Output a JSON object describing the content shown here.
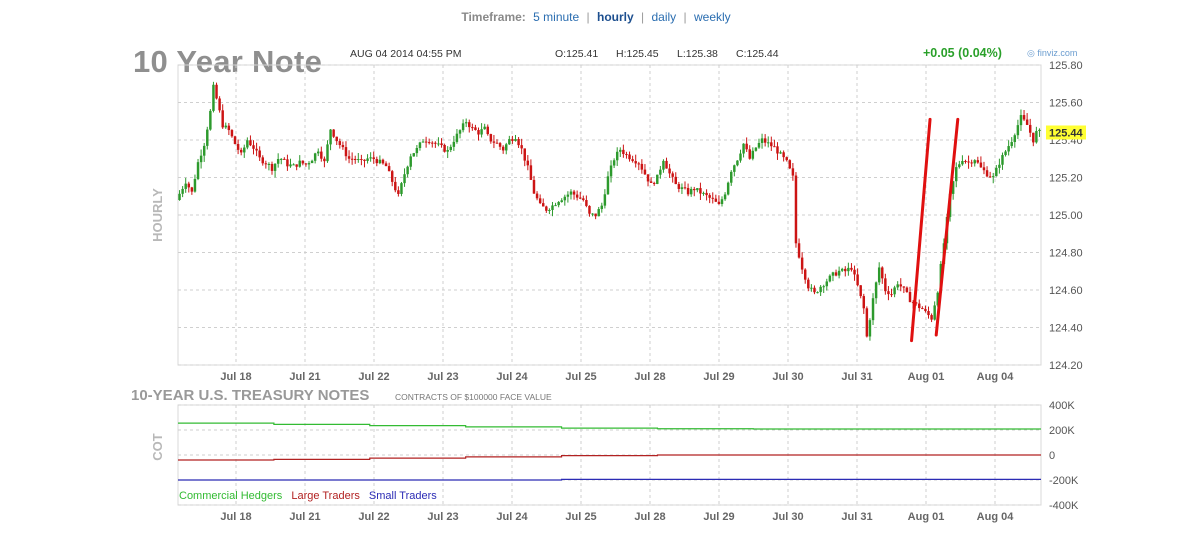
{
  "timeframe": {
    "label": "Timeframe:",
    "options": [
      {
        "label": "5 minute",
        "active": false
      },
      {
        "label": "hourly",
        "active": true
      },
      {
        "label": "daily",
        "active": false
      },
      {
        "label": "weekly",
        "active": false
      }
    ],
    "separator": "|"
  },
  "header": {
    "title": "10 Year Note",
    "datetime": "AUG 04 2014 04:55 PM",
    "open": "O:125.41",
    "high": "H:125.45",
    "low": "L:125.38",
    "close": "C:125.44",
    "change": "+0.05 (0.04%)",
    "source": "finviz.com"
  },
  "colors": {
    "up_candle": "#2d9a2d",
    "down_candle": "#cc1414",
    "grid": "#cfcfcf",
    "annotation": "#e01010",
    "last_price_bg": "#ffff33",
    "commercial": "#33bb33",
    "large": "#b22222",
    "small": "#2b2bb5"
  },
  "chart_data": [
    {
      "type": "candlestick",
      "ylabel": "HOURLY",
      "ylim": [
        124.2,
        125.8
      ],
      "yticks": [
        "125.80",
        "125.60",
        "125.40",
        "125.20",
        "125.00",
        "124.80",
        "124.60",
        "124.40",
        "124.20"
      ],
      "last_price": "125.44",
      "x_labels": [
        "Jul 18",
        "Jul 21",
        "Jul 22",
        "Jul 23",
        "Jul 24",
        "Jul 25",
        "Jul 28",
        "Jul 29",
        "Jul 30",
        "Jul 31",
        "Aug 01",
        "Aug 04"
      ],
      "price_path": [
        [
          0,
          125.08
        ],
        [
          3,
          125.18
        ],
        [
          5,
          125.12
        ],
        [
          7,
          125.28
        ],
        [
          9,
          125.38
        ],
        [
          11,
          125.55
        ],
        [
          12,
          125.68
        ],
        [
          13,
          125.62
        ],
        [
          15,
          125.48
        ],
        [
          17,
          125.45
        ],
        [
          19,
          125.38
        ],
        [
          21,
          125.32
        ],
        [
          23,
          125.4
        ],
        [
          25,
          125.36
        ],
        [
          27,
          125.3
        ],
        [
          29,
          125.28
        ],
        [
          31,
          125.25
        ],
        [
          33,
          125.3
        ],
        [
          34,
          125.3
        ],
        [
          36,
          125.27
        ],
        [
          38,
          125.26
        ],
        [
          40,
          125.28
        ],
        [
          42,
          125.27
        ],
        [
          44,
          125.3
        ],
        [
          46,
          125.35
        ],
        [
          48,
          125.28
        ],
        [
          50,
          125.46
        ],
        [
          52,
          125.4
        ],
        [
          54,
          125.35
        ],
        [
          56,
          125.3
        ],
        [
          58,
          125.3
        ],
        [
          60,
          125.28
        ],
        [
          62,
          125.3
        ],
        [
          64,
          125.3
        ],
        [
          66,
          125.28
        ],
        [
          68,
          125.26
        ],
        [
          70,
          125.18
        ],
        [
          72,
          125.1
        ],
        [
          74,
          125.22
        ],
        [
          76,
          125.32
        ],
        [
          78,
          125.35
        ],
        [
          80,
          125.4
        ],
        [
          82,
          125.4
        ],
        [
          84,
          125.38
        ],
        [
          86,
          125.36
        ],
        [
          88,
          125.34
        ],
        [
          90,
          125.4
        ],
        [
          92,
          125.45
        ],
        [
          94,
          125.5
        ],
        [
          96,
          125.46
        ],
        [
          98,
          125.44
        ],
        [
          100,
          125.46
        ],
        [
          101,
          125.42
        ],
        [
          102,
          125.4
        ],
        [
          104,
          125.38
        ],
        [
          106,
          125.35
        ],
        [
          108,
          125.4
        ],
        [
          110,
          125.42
        ],
        [
          112,
          125.35
        ],
        [
          114,
          125.25
        ],
        [
          116,
          125.12
        ],
        [
          118,
          125.05
        ],
        [
          120,
          125.03
        ],
        [
          122,
          125.05
        ],
        [
          124,
          125.08
        ],
        [
          126,
          125.1
        ],
        [
          128,
          125.12
        ],
        [
          130,
          125.1
        ],
        [
          132,
          125.08
        ],
        [
          134,
          125.0
        ],
        [
          136,
          125.0
        ],
        [
          138,
          125.05
        ],
        [
          140,
          125.2
        ],
        [
          142,
          125.3
        ],
        [
          144,
          125.35
        ],
        [
          146,
          125.32
        ],
        [
          148,
          125.3
        ],
        [
          150,
          125.28
        ],
        [
          152,
          125.22
        ],
        [
          154,
          125.16
        ],
        [
          156,
          125.2
        ],
        [
          158,
          125.3
        ],
        [
          160,
          125.22
        ],
        [
          162,
          125.16
        ],
        [
          164,
          125.14
        ],
        [
          166,
          125.12
        ],
        [
          168,
          125.14
        ],
        [
          170,
          125.12
        ],
        [
          172,
          125.1
        ],
        [
          174,
          125.08
        ],
        [
          176,
          125.05
        ],
        [
          178,
          125.12
        ],
        [
          180,
          125.24
        ],
        [
          182,
          125.3
        ],
        [
          184,
          125.38
        ],
        [
          186,
          125.3
        ],
        [
          188,
          125.36
        ],
        [
          190,
          125.4
        ],
        [
          192,
          125.38
        ],
        [
          194,
          125.36
        ],
        [
          196,
          125.32
        ],
        [
          198,
          125.28
        ],
        [
          200,
          125.2
        ],
        [
          201,
          124.85
        ],
        [
          203,
          124.72
        ],
        [
          205,
          124.62
        ],
        [
          207,
          124.58
        ],
        [
          209,
          124.62
        ],
        [
          211,
          124.65
        ],
        [
          213,
          124.68
        ],
        [
          215,
          124.7
        ],
        [
          217,
          124.7
        ],
        [
          219,
          124.72
        ],
        [
          221,
          124.62
        ],
        [
          223,
          124.5
        ],
        [
          224,
          124.35
        ],
        [
          226,
          124.55
        ],
        [
          228,
          124.72
        ],
        [
          230,
          124.6
        ],
        [
          232,
          124.58
        ],
        [
          234,
          124.64
        ],
        [
          236,
          124.6
        ],
        [
          238,
          124.55
        ],
        [
          240,
          124.52
        ],
        [
          242,
          124.5
        ],
        [
          243,
          124.48
        ],
        [
          245,
          124.45
        ],
        [
          247,
          124.6
        ],
        [
          249,
          124.85
        ],
        [
          251,
          125.1
        ],
        [
          253,
          125.25
        ],
        [
          255,
          125.3
        ],
        [
          257,
          125.28
        ],
        [
          259,
          125.3
        ],
        [
          261,
          125.25
        ],
        [
          263,
          125.22
        ],
        [
          265,
          125.2
        ],
        [
          267,
          125.28
        ],
        [
          269,
          125.34
        ],
        [
          271,
          125.4
        ],
        [
          272,
          125.44
        ],
        [
          274,
          125.52
        ],
        [
          276,
          125.48
        ],
        [
          278,
          125.4
        ],
        [
          279,
          125.44
        ]
      ],
      "annotations": [
        {
          "label": "up-trend-line-1",
          "from": [
            238,
            124.33
          ],
          "to": [
            244,
            125.51
          ]
        },
        {
          "label": "up-trend-line-2",
          "from": [
            246,
            124.36
          ],
          "to": [
            253,
            125.51
          ]
        }
      ]
    },
    {
      "type": "line",
      "title": "10-YEAR U.S. TREASURY NOTES",
      "subtitle": "CONTRACTS OF $100000 FACE VALUE",
      "ylabel": "COT",
      "ylim": [
        -400,
        400
      ],
      "yticks": [
        "400K",
        "200K",
        "0",
        "-200K",
        "-400K"
      ],
      "x_labels": [
        "Jul 18",
        "Jul 21",
        "Jul 22",
        "Jul 23",
        "Jul 24",
        "Jul 25",
        "Jul 28",
        "Jul 29",
        "Jul 30",
        "Jul 31",
        "Aug 01",
        "Aug 04"
      ],
      "series": [
        {
          "name": "Commercial Hedgers",
          "values": [
            255,
            245,
            235,
            225,
            215,
            210,
            208,
            208,
            208
          ]
        },
        {
          "name": "Large Traders",
          "values": [
            -40,
            -35,
            -25,
            -15,
            -5,
            0,
            0,
            0,
            0
          ]
        },
        {
          "name": "Small Traders",
          "values": [
            -200,
            -200,
            -200,
            -200,
            -195,
            -195,
            -195,
            -195,
            -195
          ]
        }
      ]
    }
  ]
}
